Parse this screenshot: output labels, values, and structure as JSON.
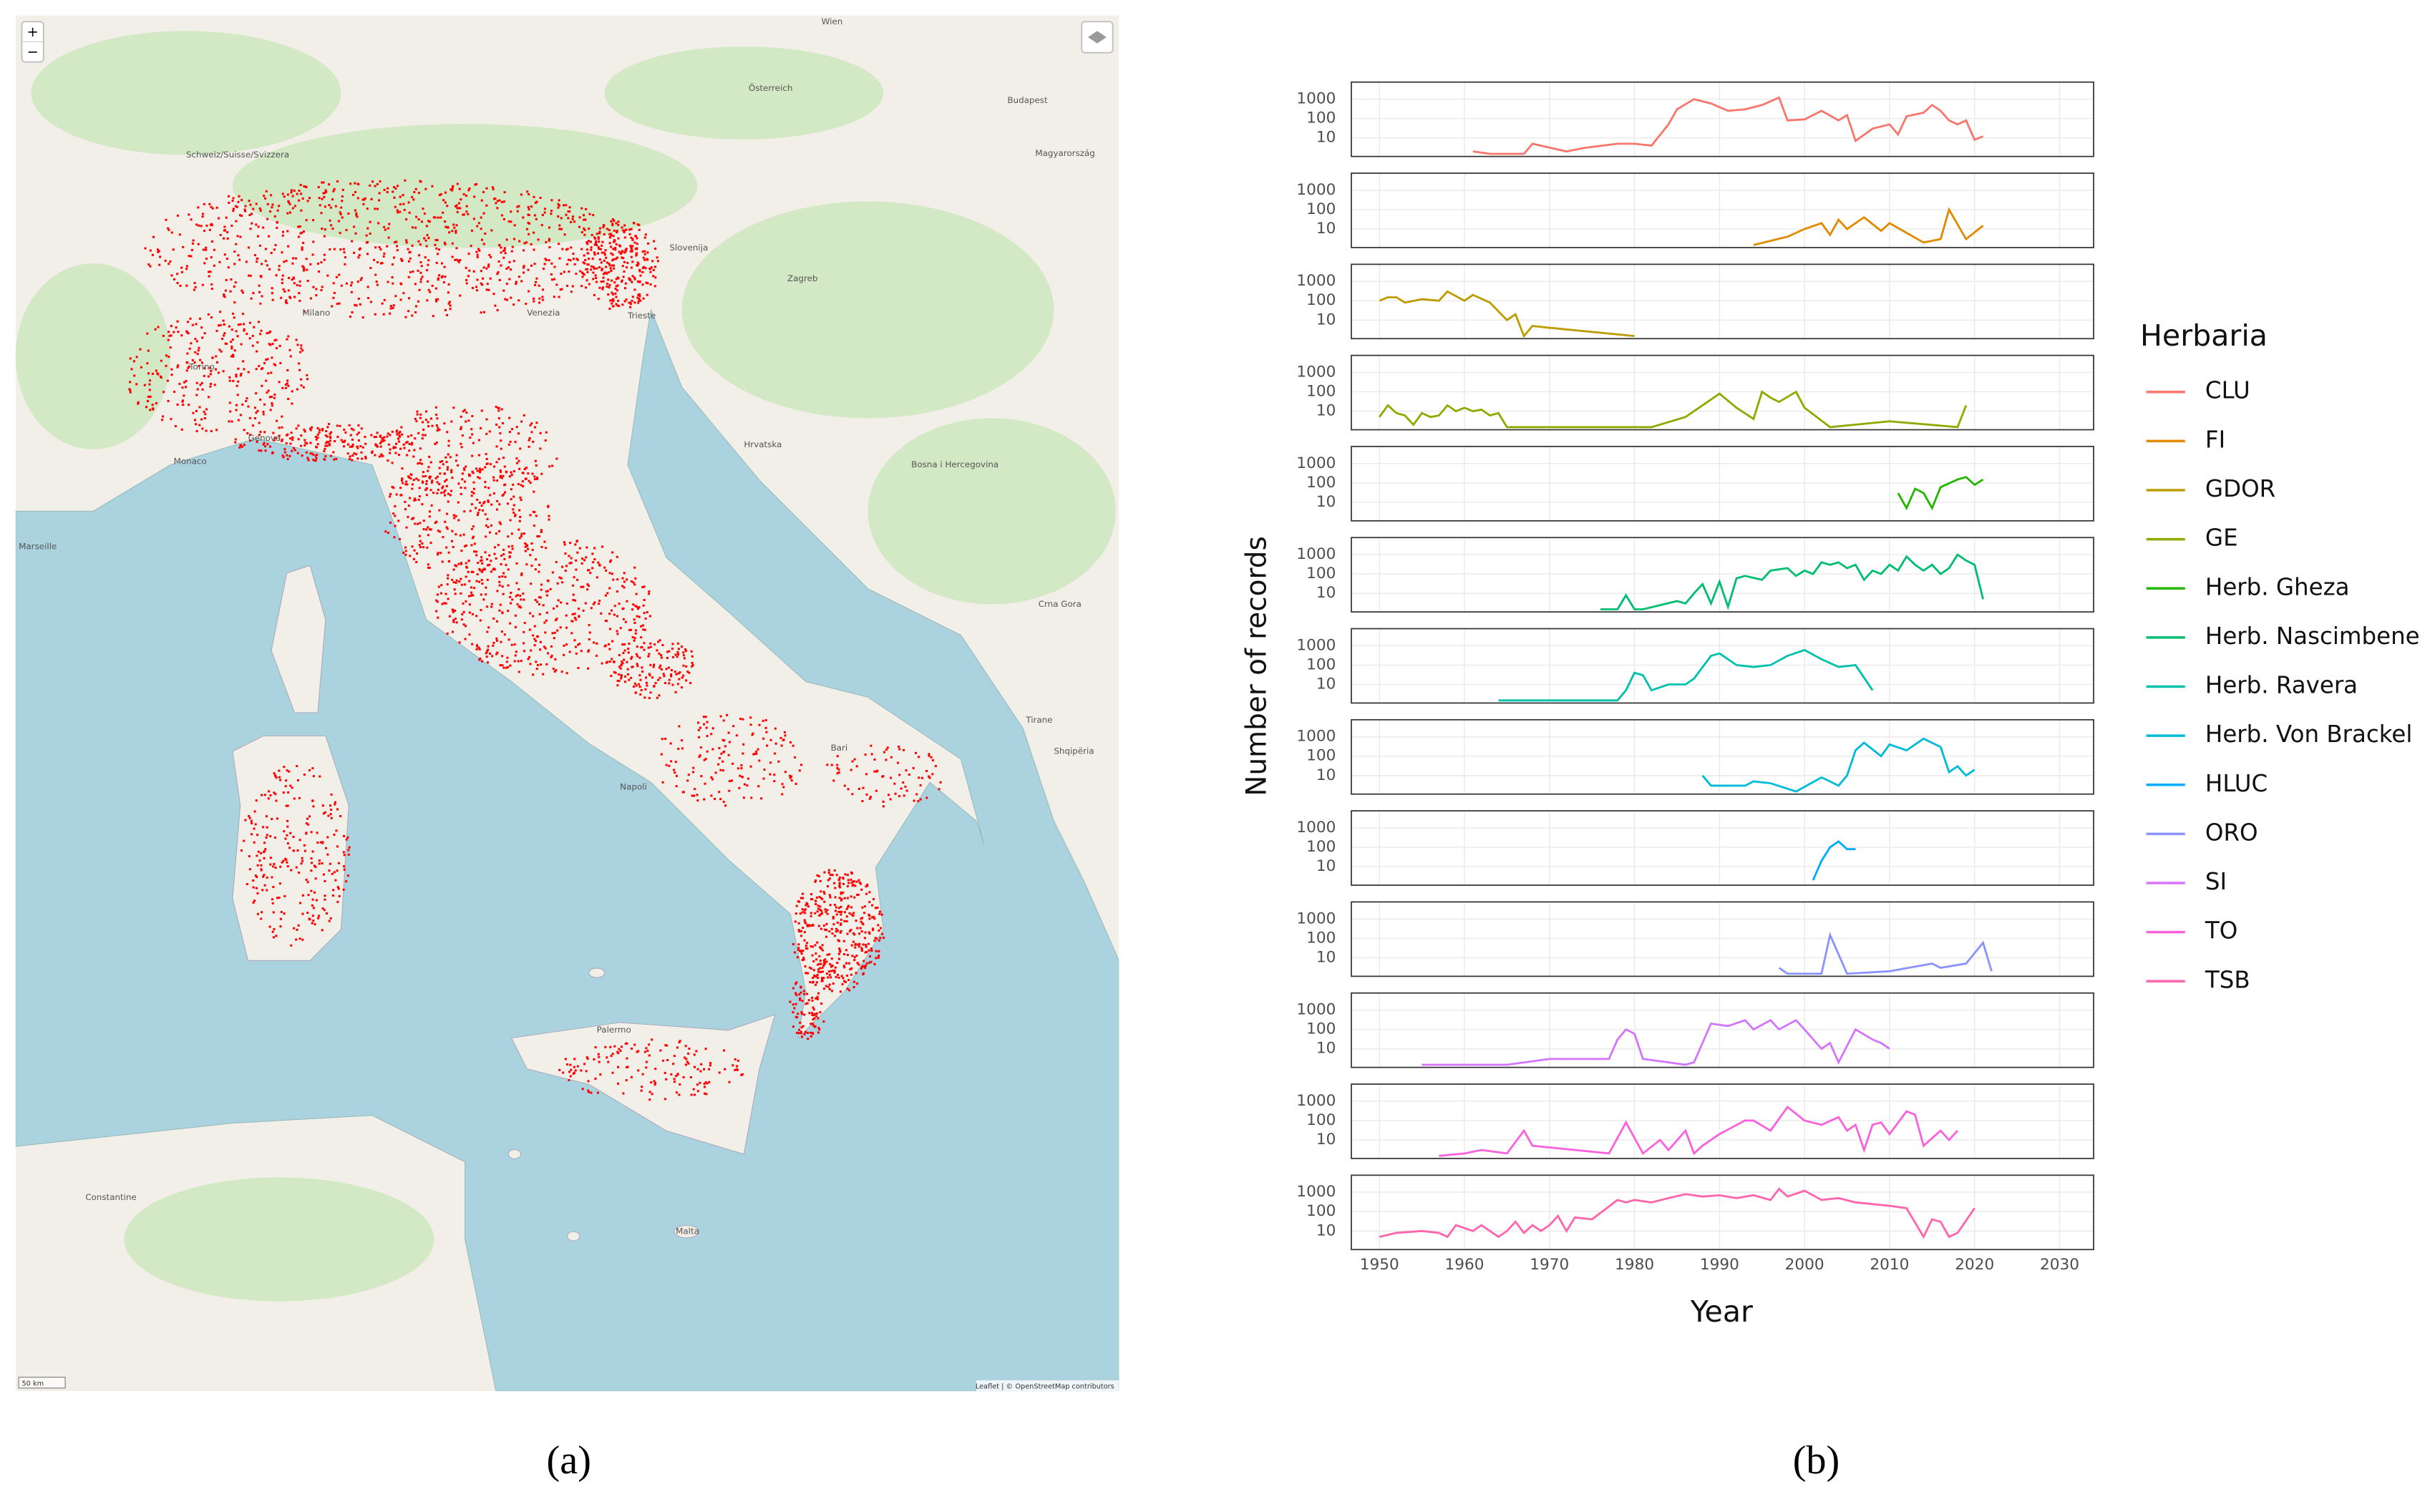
{
  "figure": {
    "panel_a_label": "(a)",
    "panel_b_label": "(b)"
  },
  "map": {
    "zoom_in": "+",
    "zoom_out": "−",
    "scale": "50 km",
    "attribution": "Leaflet | © OpenStreetMap contributors",
    "places": [
      "Österreich",
      "Wien",
      "Budapest",
      "Magyarország",
      "Slovenija",
      "Zagreb",
      "Hrvatska",
      "Bosna i Hercegovina",
      "Crna Gora",
      "Shqipëria",
      "Schweiz/Suisse/Svizzera",
      "Milano",
      "Torino",
      "Genova",
      "Venezia",
      "Trieste",
      "Monaco",
      "Marseille",
      "Napoli",
      "Bari",
      "Palermo",
      "Malta",
      "Constantine",
      "Tirane"
    ]
  },
  "chart_data": {
    "type": "line",
    "facets": true,
    "log_y": true,
    "grid": true,
    "xlabel": "Year",
    "ylabel": "Number of records",
    "legend_title": "Herbaria",
    "legend_position": "right",
    "xlim": [
      1946.7,
      2034
    ],
    "xticks": [
      1950,
      1960,
      1970,
      1980,
      1990,
      2000,
      2010,
      2020,
      2030
    ],
    "ylim": [
      1.1,
      7600
    ],
    "yticks": [
      10,
      100,
      1000
    ],
    "series": [
      {
        "name": "CLU",
        "color": "#F8766D",
        "x": [
          1961,
          1963,
          1965,
          1967,
          1968,
          1972,
          1974,
          1978,
          1980,
          1982,
          1984,
          1985,
          1987,
          1989,
          1991,
          1993,
          1995,
          1997,
          1998,
          2000,
          2002,
          2004,
          2005,
          2006,
          2008,
          2010,
          2011,
          2012,
          2014,
          2015,
          2016,
          2017,
          2018,
          2019,
          2020,
          2021
        ],
        "values": [
          2,
          1.5,
          1.5,
          1.5,
          5,
          2,
          3,
          5,
          5,
          4,
          50,
          300,
          1000,
          600,
          250,
          300,
          500,
          1200,
          80,
          90,
          250,
          80,
          150,
          7,
          30,
          50,
          15,
          130,
          200,
          500,
          250,
          80,
          50,
          80,
          8,
          12
        ]
      },
      {
        "name": "FI",
        "color": "#E18A00",
        "x": [
          1994,
          1998,
          2000,
          2002,
          2003,
          2004,
          2005,
          2007,
          2009,
          2010,
          2014,
          2016,
          2017,
          2019,
          2021
        ],
        "values": [
          1.5,
          4,
          10,
          20,
          5,
          30,
          10,
          40,
          8,
          20,
          2,
          3,
          100,
          3,
          15
        ]
      },
      {
        "name": "GDOR",
        "color": "#BE9C00",
        "x": [
          1950,
          1951,
          1952,
          1953,
          1955,
          1957,
          1958,
          1960,
          1961,
          1963,
          1965,
          1966,
          1967,
          1968,
          1970,
          1980
        ],
        "values": [
          100,
          150,
          150,
          80,
          120,
          100,
          300,
          100,
          200,
          80,
          10,
          20,
          1.5,
          5,
          4,
          1.5
        ]
      },
      {
        "name": "GE",
        "color": "#8CAB00",
        "x": [
          1950,
          1951,
          1952,
          1953,
          1954,
          1955,
          1956,
          1957,
          1958,
          1959,
          1960,
          1961,
          1962,
          1963,
          1964,
          1965,
          1982,
          1986,
          1988,
          1990,
          1992,
          1994,
          1995,
          1996,
          1997,
          1999,
          2000,
          2003,
          2010,
          2018,
          2019
        ],
        "values": [
          5,
          20,
          8,
          6,
          2,
          8,
          5,
          6,
          20,
          10,
          15,
          10,
          12,
          6,
          8,
          1.5,
          1.5,
          5,
          20,
          80,
          15,
          4,
          100,
          50,
          30,
          100,
          15,
          1.5,
          3,
          1.5,
          20
        ]
      },
      {
        "name": "Herb. Gheza",
        "color": "#24B700",
        "x": [
          2011,
          2012,
          2013,
          2014,
          2015,
          2016,
          2018,
          2019,
          2020,
          2021
        ],
        "values": [
          30,
          5,
          50,
          30,
          5,
          60,
          150,
          200,
          80,
          150
        ]
      },
      {
        "name": "Herb. Nascimbene",
        "color": "#00BE70",
        "x": [
          1976,
          1978,
          1979,
          1980,
          1981,
          1985,
          1986,
          1987,
          1988,
          1989,
          1990,
          1991,
          1992,
          1993,
          1995,
          1996,
          1998,
          1999,
          2000,
          2001,
          2002,
          2003,
          2004,
          2005,
          2006,
          2007,
          2008,
          2009,
          2010,
          2011,
          2012,
          2013,
          2014,
          2015,
          2016,
          2017,
          2018,
          2019,
          2020,
          2021
        ],
        "values": [
          1.5,
          1.5,
          8,
          1.5,
          1.5,
          4,
          3,
          10,
          30,
          3,
          40,
          2,
          60,
          80,
          50,
          150,
          200,
          80,
          150,
          100,
          400,
          300,
          400,
          200,
          300,
          50,
          150,
          100,
          300,
          150,
          800,
          300,
          150,
          300,
          100,
          200,
          1000,
          500,
          300,
          5
        ]
      },
      {
        "name": "Herb. Ravera",
        "color": "#00C1AB",
        "x": [
          1964,
          1978,
          1979,
          1980,
          1981,
          1982,
          1984,
          1986,
          1987,
          1989,
          1990,
          1992,
          1994,
          1996,
          1998,
          2000,
          2002,
          2004,
          2006,
          2008
        ],
        "values": [
          1.5,
          1.5,
          5,
          40,
          30,
          5,
          10,
          10,
          20,
          300,
          400,
          100,
          80,
          100,
          300,
          600,
          200,
          80,
          100,
          5
        ]
      },
      {
        "name": "Herb. Von Brackel",
        "color": "#00BBDA",
        "x": [
          1988,
          1989,
          1993,
          1994,
          1996,
          1999,
          2002,
          2003,
          2004,
          2005,
          2006,
          2007,
          2009,
          2010,
          2012,
          2014,
          2016,
          2017,
          2018,
          2019,
          2020
        ],
        "values": [
          10,
          3,
          3,
          5,
          4,
          1.5,
          8,
          5,
          3,
          10,
          200,
          500,
          100,
          400,
          200,
          800,
          300,
          15,
          30,
          10,
          20
        ]
      },
      {
        "name": "HLUC",
        "color": "#00ACFC",
        "x": [
          2001,
          2002,
          2003,
          2004,
          2005,
          2006
        ],
        "values": [
          2,
          20,
          100,
          200,
          80,
          80
        ]
      },
      {
        "name": "ORO",
        "color": "#8B93FF",
        "x": [
          1997,
          1998,
          2001,
          2002,
          2003,
          2005,
          2010,
          2015,
          2016,
          2019,
          2021,
          2022
        ],
        "values": [
          3,
          1.5,
          1.5,
          1.5,
          150,
          1.5,
          2,
          5,
          3,
          5,
          60,
          2
        ]
      },
      {
        "name": "SI",
        "color": "#D575FE",
        "x": [
          1955,
          1965,
          1970,
          1977,
          1978,
          1979,
          1980,
          1981,
          1984,
          1986,
          1987,
          1989,
          1991,
          1993,
          1994,
          1996,
          1997,
          1999,
          2000,
          2002,
          2003,
          2004,
          2006,
          2008,
          2009,
          2010
        ],
        "values": [
          1.5,
          1.5,
          3,
          3,
          30,
          100,
          60,
          3,
          2,
          1.5,
          2,
          200,
          150,
          300,
          100,
          300,
          100,
          300,
          100,
          10,
          20,
          2,
          100,
          30,
          20,
          10
        ]
      },
      {
        "name": "TO",
        "color": "#F962DD",
        "x": [
          1957,
          1960,
          1962,
          1965,
          1967,
          1968,
          1977,
          1979,
          1981,
          1983,
          1984,
          1986,
          1987,
          1988,
          1990,
          1993,
          1994,
          1996,
          1998,
          2000,
          2002,
          2004,
          2005,
          2006,
          2007,
          2008,
          2009,
          2010,
          2012,
          2013,
          2014,
          2016,
          2017,
          2018
        ],
        "values": [
          1.5,
          2,
          3,
          2,
          30,
          5,
          2,
          80,
          2,
          10,
          3,
          30,
          2,
          5,
          20,
          100,
          100,
          30,
          500,
          100,
          60,
          150,
          30,
          60,
          3,
          60,
          80,
          20,
          300,
          200,
          5,
          30,
          10,
          30
        ]
      },
      {
        "name": "TSB",
        "color": "#FF65AC",
        "x": [
          1950,
          1952,
          1955,
          1957,
          1958,
          1959,
          1961,
          1962,
          1964,
          1965,
          1966,
          1967,
          1968,
          1969,
          1970,
          1971,
          1972,
          1973,
          1975,
          1978,
          1979,
          1980,
          1982,
          1984,
          1986,
          1988,
          1990,
          1992,
          1994,
          1996,
          1997,
          1998,
          2000,
          2002,
          2004,
          2006,
          2010,
          2012,
          2014,
          2015,
          2016,
          2017,
          2018,
          2020
        ],
        "values": [
          5,
          8,
          10,
          8,
          5,
          20,
          10,
          20,
          5,
          10,
          30,
          8,
          20,
          10,
          20,
          60,
          10,
          50,
          40,
          400,
          300,
          400,
          300,
          500,
          800,
          600,
          700,
          500,
          700,
          400,
          1500,
          600,
          1200,
          400,
          500,
          300,
          200,
          150,
          5,
          40,
          30,
          5,
          8,
          150
        ]
      }
    ]
  }
}
